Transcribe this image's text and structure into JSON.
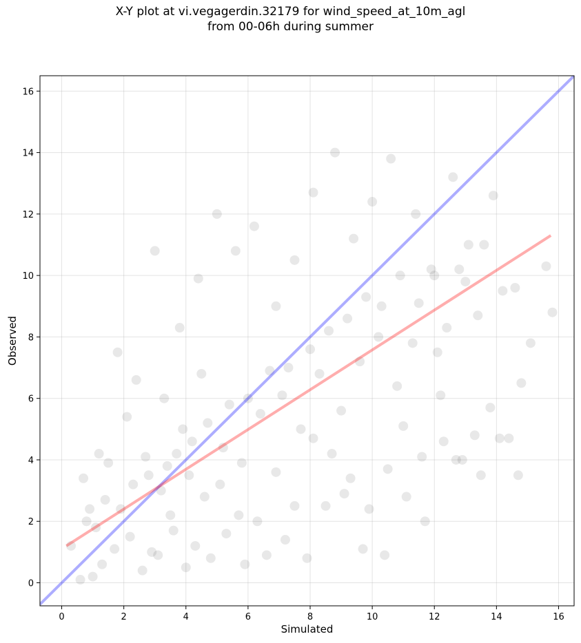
{
  "chart_data": {
    "type": "scatter",
    "title": "X-Y plot at vi.vegagerdin.32179 for wind_speed_at_10m_agl",
    "subtitle": "from 00-06h during summer",
    "xlabel": "Simulated",
    "ylabel": "Observed",
    "xlim": [
      -0.7,
      16.5
    ],
    "ylim": [
      -0.75,
      16.5
    ],
    "x_ticks": [
      0,
      2,
      4,
      6,
      8,
      10,
      12,
      14,
      16
    ],
    "y_ticks": [
      0,
      2,
      4,
      6,
      8,
      10,
      12,
      14,
      16
    ],
    "grid": true,
    "point_color": "#000000",
    "point_opacity": 0.09,
    "series": [
      {
        "values_x": [
          2.9,
          3.2,
          3.5,
          4.1,
          4.6,
          5.2,
          5.8,
          6.4,
          7.1,
          7.7,
          8.3,
          9.0,
          9.6,
          10.2,
          10.8,
          11.5,
          12.1,
          12.8,
          13.4,
          14.2,
          14.8,
          15.6,
          15.8,
          15.1,
          14.6,
          13.9,
          13.1,
          12.6,
          12.0,
          11.4,
          10.6,
          10.0,
          9.4,
          8.8,
          8.1,
          7.5,
          6.9,
          6.2,
          5.6,
          5.0,
          4.4,
          3.8,
          3.0,
          2.4,
          1.8,
          1.2,
          0.7,
          0.3,
          0.9,
          1.5,
          2.1,
          2.7,
          3.3,
          3.9,
          4.5,
          5.1,
          5.7,
          6.3,
          6.9,
          7.5,
          8.1,
          8.7,
          9.3,
          9.9,
          10.5,
          11.1,
          11.7,
          12.3,
          12.9,
          13.5,
          14.1,
          14.7,
          1.0,
          1.3,
          1.7,
          2.2,
          2.6,
          3.1,
          3.6,
          4.0,
          4.3,
          4.8,
          5.3,
          5.9,
          6.6,
          7.2,
          7.9,
          8.5,
          9.1,
          9.7,
          10.4,
          11.0,
          11.6,
          12.2,
          12.7,
          13.3,
          13.8,
          14.4,
          0.6,
          0.8,
          1.1,
          1.4,
          1.9,
          2.3,
          2.8,
          3.4,
          3.7,
          4.2,
          4.7,
          5.4,
          6.0,
          6.7,
          7.3,
          8.0,
          8.6,
          9.2,
          9.8,
          10.3,
          10.9,
          11.3,
          11.9,
          12.4,
          13.0,
          13.6
        ],
        "values_y": [
          1.0,
          3.0,
          2.2,
          3.5,
          2.8,
          4.4,
          3.9,
          5.5,
          6.1,
          5.0,
          6.8,
          5.6,
          7.2,
          8.0,
          6.4,
          9.1,
          7.5,
          10.2,
          8.7,
          9.5,
          6.5,
          10.3,
          8.8,
          7.8,
          9.6,
          12.6,
          11.0,
          13.2,
          10.0,
          12.0,
          13.8,
          12.4,
          11.2,
          14.0,
          12.7,
          10.5,
          9.0,
          11.6,
          10.8,
          12.0,
          9.9,
          8.3,
          10.8,
          6.6,
          7.5,
          4.2,
          3.4,
          1.2,
          2.4,
          3.9,
          5.4,
          4.1,
          6.0,
          5.0,
          6.8,
          3.2,
          2.2,
          2.0,
          3.6,
          2.5,
          4.7,
          4.2,
          3.4,
          2.4,
          3.7,
          2.8,
          2.0,
          4.6,
          4.0,
          3.5,
          4.7,
          3.5,
          0.2,
          0.6,
          1.1,
          1.5,
          0.4,
          0.9,
          1.7,
          0.5,
          1.2,
          0.8,
          1.6,
          0.6,
          0.9,
          1.4,
          0.8,
          2.5,
          2.9,
          1.1,
          0.9,
          5.1,
          4.1,
          6.1,
          4.0,
          4.8,
          5.7,
          4.7,
          0.1,
          2.0,
          1.8,
          2.7,
          2.4,
          3.2,
          3.5,
          3.8,
          4.2,
          4.6,
          5.2,
          5.8,
          6.0,
          6.9,
          7.0,
          7.6,
          8.2,
          8.6,
          9.3,
          9.0,
          10.0,
          7.8,
          10.2,
          8.3,
          9.8,
          11.0
        ]
      }
    ],
    "reference_lines": [
      {
        "kind": "identity",
        "color": "#0000ff",
        "opacity": 0.32,
        "x": [
          -0.7,
          16.5
        ],
        "y": [
          -0.7,
          16.5
        ]
      },
      {
        "kind": "fit",
        "color": "#ff0000",
        "opacity": 0.32,
        "x": [
          0.15,
          15.75
        ],
        "y": [
          1.2,
          11.3
        ]
      }
    ]
  }
}
